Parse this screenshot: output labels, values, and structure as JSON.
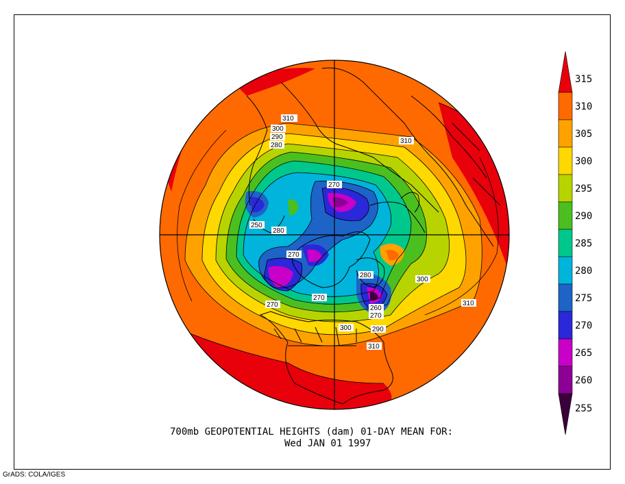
{
  "title": {
    "line1": "700mb GEOPOTENTIAL HEIGHTS (dam)   01-DAY MEAN FOR:",
    "line2": "Wed JAN 01 1997"
  },
  "footer": "GrADS: COLA/IGES",
  "colorbar": {
    "levels": [
      "315",
      "310",
      "305",
      "300",
      "295",
      "290",
      "285",
      "280",
      "275",
      "270",
      "265",
      "260",
      "255"
    ],
    "colors": [
      "#e8000b",
      "#ff6a00",
      "#ffa200",
      "#ffd800",
      "#b8d400",
      "#4bbf1f",
      "#00c88c",
      "#00b4dc",
      "#1e64c8",
      "#2a28d8",
      "#c800c8",
      "#8c0096",
      "#3a003a"
    ]
  },
  "contour_labels": [
    "310",
    "300",
    "290",
    "280",
    "270",
    "250",
    "280",
    "270",
    "280",
    "270",
    "260",
    "270",
    "290",
    "300",
    "310",
    "300",
    "310",
    "310"
  ]
}
